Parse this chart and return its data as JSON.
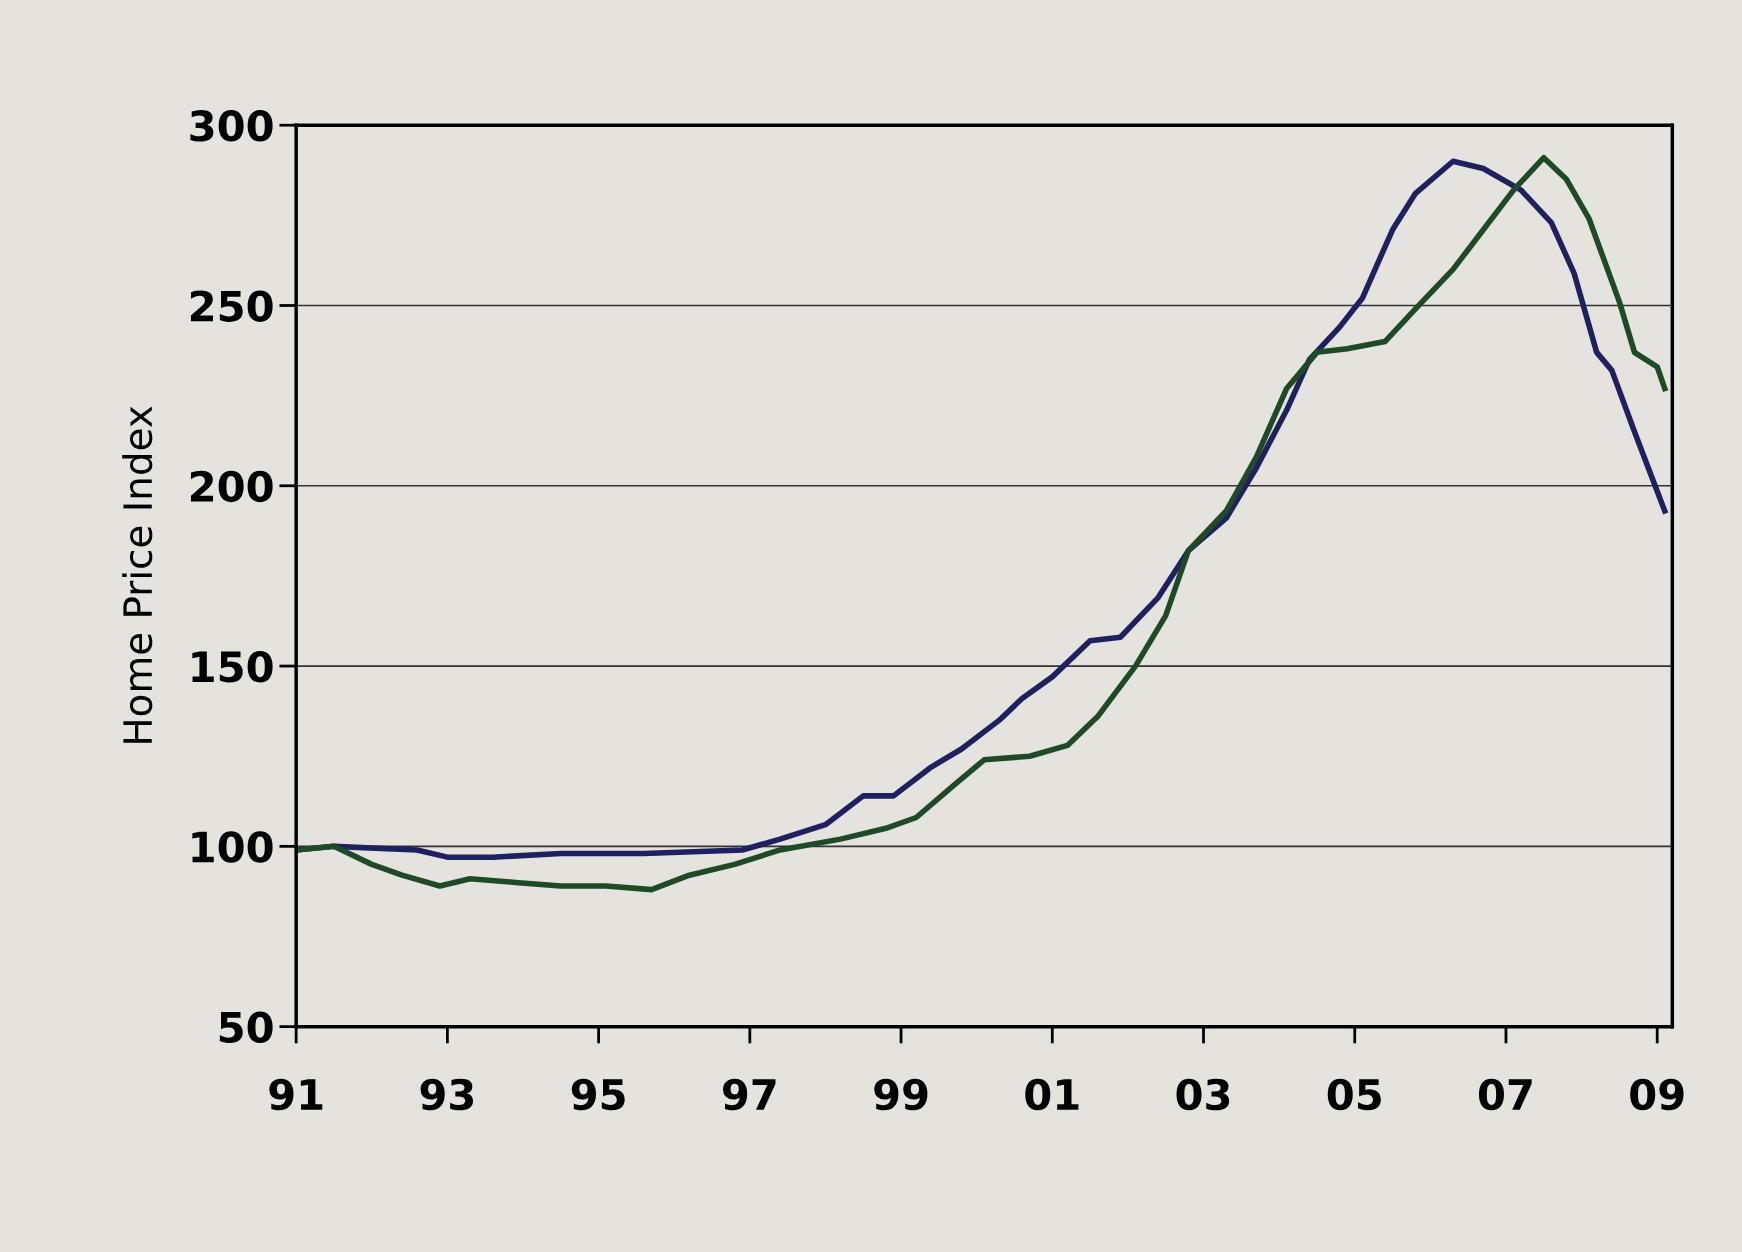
{
  "chart_data": {
    "type": "line",
    "ylabel": "Home Price Index",
    "x": [
      1991.0,
      1991.5,
      1992.6,
      1993.0,
      1993.6,
      1994.5,
      1995.6,
      1996.9,
      1997.4,
      1998.0,
      1998.5,
      1998.9,
      1999.4,
      1999.8,
      2000.3,
      2000.6,
      2001.0,
      2001.5,
      2001.9,
      2002.4,
      2002.8,
      2003.3,
      2003.7,
      2004.1,
      2004.4,
      2004.8,
      2005.1,
      2005.5,
      2005.8,
      2006.3,
      2006.7,
      2007.2,
      2007.6,
      2007.9,
      2008.2,
      2008.4,
      2008.7,
      2009.1
    ],
    "series": [
      {
        "color": "#1e2060",
        "values": [
          99,
          100,
          99,
          97,
          97,
          98,
          98,
          99,
          102,
          106,
          114,
          114,
          122,
          127,
          135,
          141,
          147,
          157,
          158,
          169,
          182,
          191,
          205,
          221,
          235,
          244,
          252,
          271,
          281,
          290,
          288,
          282,
          273,
          259,
          237,
          232,
          215,
          193
        ]
      },
      {
        "color": "#1e4a26",
        "x": [
          1991.0,
          1991.5,
          1992.0,
          1992.4,
          1992.9,
          1993.3,
          1993.9,
          1994.5,
          1995.1,
          1995.7,
          1996.2,
          1996.8,
          1997.4,
          1998.2,
          1998.8,
          1999.2,
          1999.7,
          2000.1,
          2000.7,
          2001.2,
          2001.6,
          2002.1,
          2002.5,
          2002.8,
          2003.3,
          2003.7,
          2004.1,
          2004.5,
          2004.9,
          2005.4,
          2005.8,
          2006.3,
          2006.7,
          2007.1,
          2007.5,
          2007.8,
          2008.1,
          2008.5,
          2008.7,
          2009.0,
          2009.1
        ],
        "values": [
          99,
          100,
          95,
          92,
          89,
          91,
          90,
          89,
          89,
          88,
          92,
          95,
          99,
          102,
          105,
          108,
          117,
          124,
          125,
          128,
          136,
          150,
          164,
          182,
          193,
          208,
          227,
          237,
          238,
          240,
          249,
          260,
          271,
          282,
          291,
          285,
          274,
          251,
          237,
          233,
          227
        ]
      }
    ],
    "xlim": [
      1991,
      2009.2
    ],
    "ylim": [
      50,
      300
    ],
    "xticks": [
      {
        "value": 1991,
        "label": "91"
      },
      {
        "value": 1993,
        "label": "93"
      },
      {
        "value": 1995,
        "label": "95"
      },
      {
        "value": 1997,
        "label": "97"
      },
      {
        "value": 1999,
        "label": "99"
      },
      {
        "value": 2001,
        "label": "01"
      },
      {
        "value": 2003,
        "label": "03"
      },
      {
        "value": 2005,
        "label": "05"
      },
      {
        "value": 2007,
        "label": "07"
      },
      {
        "value": 2009,
        "label": "09"
      }
    ],
    "yticks": [
      50,
      100,
      150,
      200,
      250,
      300
    ],
    "grid": "y",
    "line_style": "solid",
    "marker": "none",
    "legend": false
  }
}
